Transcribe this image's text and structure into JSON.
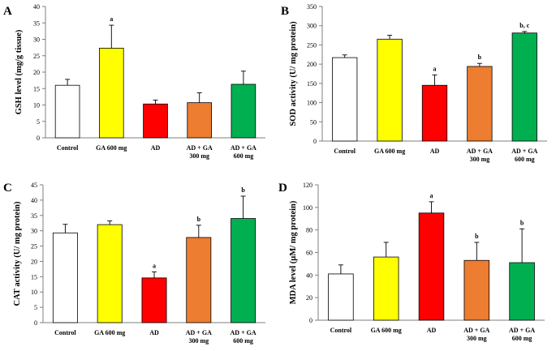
{
  "figure_title": "",
  "chart_data": [
    {
      "type": "bar",
      "panel": "A",
      "title": "",
      "xlabel": "",
      "ylabel": "GSH level (mg/g tissue)",
      "ylim": [
        0,
        40
      ],
      "yticks": [
        0,
        5,
        10,
        15,
        20,
        25,
        30,
        35,
        40
      ],
      "categories": [
        [
          "Control"
        ],
        [
          "GA 600 mg"
        ],
        [
          "AD"
        ],
        [
          "AD + GA",
          "300 mg"
        ],
        [
          "AD + GA",
          "600 mg"
        ]
      ],
      "values": [
        16.0,
        27.3,
        10.3,
        10.7,
        16.3
      ],
      "errors": [
        1.8,
        7.0,
        1.2,
        3.0,
        4.0
      ],
      "significance": [
        "",
        "a",
        "",
        "",
        ""
      ],
      "colors": [
        "#ffffff",
        "#ffff00",
        "#ff0000",
        "#ed7d31",
        "#00b050"
      ]
    },
    {
      "type": "bar",
      "panel": "B",
      "title": "",
      "xlabel": "",
      "ylabel": "SOD activity (U/ mg protein)",
      "ylim": [
        0,
        350
      ],
      "yticks": [
        0,
        50,
        100,
        150,
        200,
        250,
        300,
        350
      ],
      "categories": [
        [
          "Control"
        ],
        [
          "GA 600 mg"
        ],
        [
          "AD"
        ],
        [
          "AD + GA",
          "300 mg"
        ],
        [
          "AD + GA",
          "600 mg"
        ]
      ],
      "values": [
        217,
        265,
        145,
        194,
        281
      ],
      "errors": [
        7,
        10,
        27,
        8,
        4
      ],
      "significance": [
        "",
        "",
        "a",
        "b",
        "b, c"
      ],
      "colors": [
        "#ffffff",
        "#ffff00",
        "#ff0000",
        "#ed7d31",
        "#00b050"
      ]
    },
    {
      "type": "bar",
      "panel": "C",
      "title": "",
      "xlabel": "",
      "ylabel": "CAT activity (U/ mg protein)",
      "ylim": [
        0,
        45
      ],
      "yticks": [
        0,
        5,
        10,
        15,
        20,
        25,
        30,
        35,
        40,
        45
      ],
      "categories": [
        [
          "Control"
        ],
        [
          "GA 600 mg"
        ],
        [
          "AD"
        ],
        [
          "AD + GA",
          "300 mg"
        ],
        [
          "AD + GA",
          "600 mg"
        ]
      ],
      "values": [
        29.3,
        32.0,
        14.6,
        27.8,
        34.0
      ],
      "errors": [
        2.8,
        1.2,
        2.0,
        4.0,
        7.3
      ],
      "significance": [
        "",
        "",
        "a",
        "b",
        "b"
      ],
      "colors": [
        "#ffffff",
        "#ffff00",
        "#ff0000",
        "#ed7d31",
        "#00b050"
      ]
    },
    {
      "type": "bar",
      "panel": "D",
      "title": "",
      "xlabel": "",
      "ylabel": "MDA level (µM/ mg protein)",
      "ylim": [
        0,
        120
      ],
      "yticks": [
        0,
        20,
        40,
        60,
        80,
        100,
        120
      ],
      "categories": [
        [
          "Control"
        ],
        [
          "GA 600 mg"
        ],
        [
          "AD"
        ],
        [
          "AD + GA",
          "300 mg"
        ],
        [
          "AD + GA",
          "600 mg"
        ]
      ],
      "values": [
        41,
        56,
        95,
        53,
        51
      ],
      "errors": [
        8,
        13,
        10,
        16,
        30
      ],
      "significance": [
        "",
        "",
        "a",
        "b",
        "b"
      ],
      "colors": [
        "#ffffff",
        "#ffff00",
        "#ff0000",
        "#ed7d31",
        "#00b050"
      ]
    }
  ]
}
